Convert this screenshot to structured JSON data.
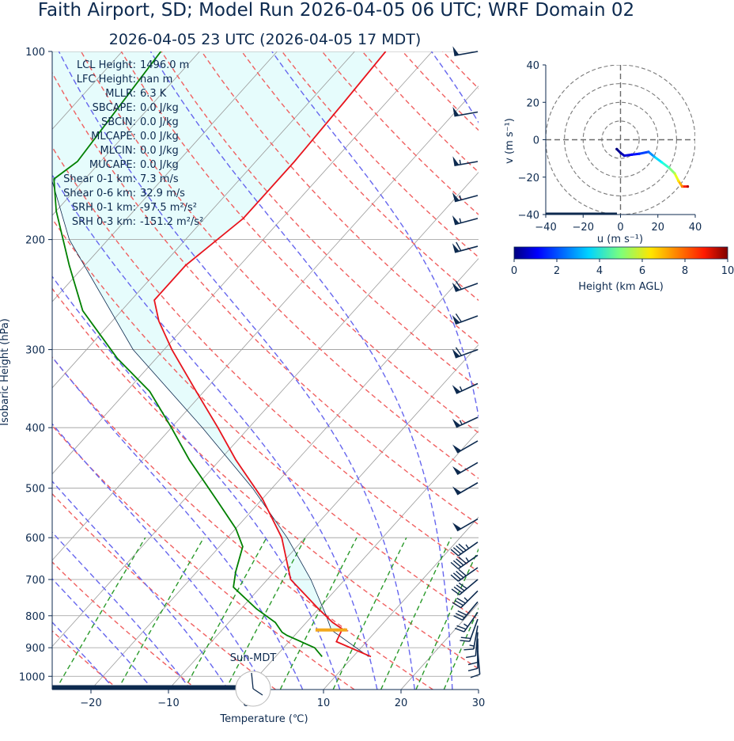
{
  "title": "Faith Airport, SD; Model Run 2026-04-05 06 UTC; WRF Domain 02",
  "subtitle": "2026-04-05 23 UTC  (2026-04-05 17 MDT)",
  "colors": {
    "text": "#0d2a4f",
    "temperature": "#e8141d",
    "dewpoint": "#008000",
    "parcel": "#0d2a4f",
    "dry_adiabat": "#f06060",
    "moist_adiabat": "#6666ee",
    "mixing_ratio": "#2a9a2a",
    "isotherm": "#9a9a9a",
    "cape_fill": "#e6fcfc",
    "barb": "#0d2a4f",
    "lcl_marker": "#f2a81d"
  },
  "stats": [
    {
      "label": "LCL Height:",
      "value": "1496.0 m"
    },
    {
      "label": "LFC Height:",
      "value": "nan m"
    },
    {
      "label": "MLLR:",
      "value": "6.3 K"
    },
    {
      "label": "SBCAPE:",
      "value": "0.0 J/kg"
    },
    {
      "label": "SBCIN:",
      "value": "0.0 J/kg"
    },
    {
      "label": "MLCAPE:",
      "value": "0.0 J/kg"
    },
    {
      "label": "MLCIN:",
      "value": "0.0 J/kg"
    },
    {
      "label": "MUCAPE:",
      "value": "0.0 J/kg"
    },
    {
      "label": "Shear 0-1 km:",
      "value": "7.3 m/s"
    },
    {
      "label": "Shear 0-6 km:",
      "value": "32.9 m/s"
    },
    {
      "label": "SRH 0-1 km:",
      "value": "-97.5 m²/s²"
    },
    {
      "label": "SRH 0-3 km:",
      "value": "-151.2 m²/s²"
    }
  ],
  "clock_label": "Sun-MDT",
  "chart_data": [
    {
      "type": "line",
      "name": "skew-t log-p",
      "xlabel": "Temperature (℃)",
      "ylabel": "Isobaric Height (hPa)",
      "xlim": [
        -25,
        30
      ],
      "ylim": [
        1050,
        100
      ],
      "log_y": true,
      "x_ticks": [
        -20,
        -10,
        0,
        10,
        20,
        30
      ],
      "x_tick_labels": [
        "−20",
        "−10",
        "0",
        "10",
        "20",
        "30"
      ],
      "y_ticks": [
        100,
        200,
        300,
        400,
        500,
        600,
        700,
        800,
        900,
        1000
      ],
      "y_tick_labels": [
        "100",
        "200",
        "300",
        "400",
        "500",
        "600",
        "700",
        "800",
        "900",
        "1000"
      ],
      "grid": true,
      "temperature": [
        {
          "p": 930,
          "t": 12.3
        },
        {
          "p": 880,
          "t": 6.1
        },
        {
          "p": 840,
          "t": 5.4
        },
        {
          "p": 820,
          "t": 3.4
        },
        {
          "p": 780,
          "t": 0.0
        },
        {
          "p": 700,
          "t": -7.0
        },
        {
          "p": 600,
          "t": -13.0
        },
        {
          "p": 520,
          "t": -20.0
        },
        {
          "p": 450,
          "t": -28.0
        },
        {
          "p": 400,
          "t": -34.0
        },
        {
          "p": 350,
          "t": -41.0
        },
        {
          "p": 300,
          "t": -49.0
        },
        {
          "p": 270,
          "t": -54.0
        },
        {
          "p": 250,
          "t": -57.0
        },
        {
          "p": 220,
          "t": -57.0
        },
        {
          "p": 185,
          "t": -55.0
        },
        {
          "p": 150,
          "t": -55.0
        },
        {
          "p": 120,
          "t": -55.5
        },
        {
          "p": 100,
          "t": -56.0
        }
      ],
      "dewpoint": [
        {
          "p": 930,
          "t": 6.0
        },
        {
          "p": 900,
          "t": 4.0
        },
        {
          "p": 860,
          "t": -1.0
        },
        {
          "p": 850,
          "t": -2.0
        },
        {
          "p": 820,
          "t": -4.0
        },
        {
          "p": 780,
          "t": -8.0
        },
        {
          "p": 720,
          "t": -13.5
        },
        {
          "p": 680,
          "t": -15.0
        },
        {
          "p": 620,
          "t": -17.0
        },
        {
          "p": 580,
          "t": -20.0
        },
        {
          "p": 520,
          "t": -26.0
        },
        {
          "p": 450,
          "t": -34.0
        },
        {
          "p": 400,
          "t": -40.0
        },
        {
          "p": 350,
          "t": -47.0
        },
        {
          "p": 310,
          "t": -55.0
        },
        {
          "p": 260,
          "t": -65.0
        },
        {
          "p": 220,
          "t": -72.0
        },
        {
          "p": 180,
          "t": -80.0
        },
        {
          "p": 160,
          "t": -84.0
        },
        {
          "p": 150,
          "t": -83.0
        },
        {
          "p": 100,
          "t": -85.0
        }
      ],
      "parcel_profile": [
        {
          "p": 930,
          "t": 12.0
        },
        {
          "p": 843,
          "t": 4.1
        },
        {
          "p": 800,
          "t": 1.8
        },
        {
          "p": 700,
          "t": -4.4
        },
        {
          "p": 600,
          "t": -12.3
        },
        {
          "p": 500,
          "t": -22.5
        },
        {
          "p": 400,
          "t": -36.0
        },
        {
          "p": 300,
          "t": -54.0
        },
        {
          "p": 200,
          "t": -75.0
        },
        {
          "p": 150,
          "t": -87.0
        }
      ],
      "lcl": {
        "p": 843,
        "t": 4.1
      }
    },
    {
      "type": "scatter",
      "name": "hodograph",
      "xlabel": "u (m s⁻¹)",
      "ylabel": "v (m s⁻¹)",
      "xlim": [
        -40,
        40
      ],
      "ylim": [
        -40,
        40
      ],
      "ticks": [
        -40,
        -20,
        0,
        20,
        40
      ],
      "tick_labels": [
        "−40",
        "−20",
        "0",
        "20",
        "40"
      ],
      "rings": [
        10,
        20,
        30,
        40
      ],
      "colorbar": {
        "label": "Height (km AGL)",
        "range": [
          0,
          10
        ],
        "ticks": [
          0,
          2,
          4,
          6,
          8,
          10
        ],
        "colormap": "jet"
      },
      "points": [
        {
          "u": -2,
          "v": -5,
          "z": 0.0
        },
        {
          "u": 0,
          "v": -7,
          "z": 0.3
        },
        {
          "u": 2,
          "v": -8.5,
          "z": 0.7
        },
        {
          "u": 6,
          "v": -8,
          "z": 1.2
        },
        {
          "u": 10,
          "v": -7.5,
          "z": 1.6
        },
        {
          "u": 15,
          "v": -6.5,
          "z": 2.2
        },
        {
          "u": 18,
          "v": -9,
          "z": 3.0
        },
        {
          "u": 22,
          "v": -12,
          "z": 3.8
        },
        {
          "u": 26,
          "v": -15,
          "z": 4.6
        },
        {
          "u": 29,
          "v": -18,
          "z": 5.5
        },
        {
          "u": 31,
          "v": -22,
          "z": 6.5
        },
        {
          "u": 33,
          "v": -25,
          "z": 7.5
        },
        {
          "u": 36,
          "v": -25,
          "z": 9.5
        }
      ]
    },
    {
      "type": "scatter",
      "name": "wind barbs",
      "units": "m/s",
      "barbs": [
        {
          "p": 100,
          "speed": 52,
          "dir": 260
        },
        {
          "p": 125,
          "speed": 52,
          "dir": 260
        },
        {
          "p": 150,
          "speed": 55,
          "dir": 260
        },
        {
          "p": 170,
          "speed": 57,
          "dir": 255
        },
        {
          "p": 185,
          "speed": 58,
          "dir": 255
        },
        {
          "p": 205,
          "speed": 60,
          "dir": 255
        },
        {
          "p": 235,
          "speed": 63,
          "dir": 250
        },
        {
          "p": 265,
          "speed": 63,
          "dir": 250
        },
        {
          "p": 300,
          "speed": 60,
          "dir": 250
        },
        {
          "p": 340,
          "speed": 58,
          "dir": 245
        },
        {
          "p": 385,
          "speed": 55,
          "dir": 245
        },
        {
          "p": 420,
          "speed": 52,
          "dir": 240
        },
        {
          "p": 455,
          "speed": 50,
          "dir": 240
        },
        {
          "p": 490,
          "speed": 50,
          "dir": 240
        },
        {
          "p": 560,
          "speed": 50,
          "dir": 240
        },
        {
          "p": 610,
          "speed": 48,
          "dir": 235
        },
        {
          "p": 640,
          "speed": 45,
          "dir": 235
        },
        {
          "p": 670,
          "speed": 42,
          "dir": 235
        },
        {
          "p": 700,
          "speed": 40,
          "dir": 230
        },
        {
          "p": 730,
          "speed": 35,
          "dir": 225
        },
        {
          "p": 760,
          "speed": 30,
          "dir": 220
        },
        {
          "p": 790,
          "speed": 25,
          "dir": 215
        },
        {
          "p": 810,
          "speed": 20,
          "dir": 200
        },
        {
          "p": 830,
          "speed": 16,
          "dir": 190
        },
        {
          "p": 850,
          "speed": 14,
          "dir": 185
        },
        {
          "p": 870,
          "speed": 12,
          "dir": 180
        },
        {
          "p": 890,
          "speed": 11,
          "dir": 180
        },
        {
          "p": 910,
          "speed": 10,
          "dir": 175
        }
      ]
    }
  ]
}
